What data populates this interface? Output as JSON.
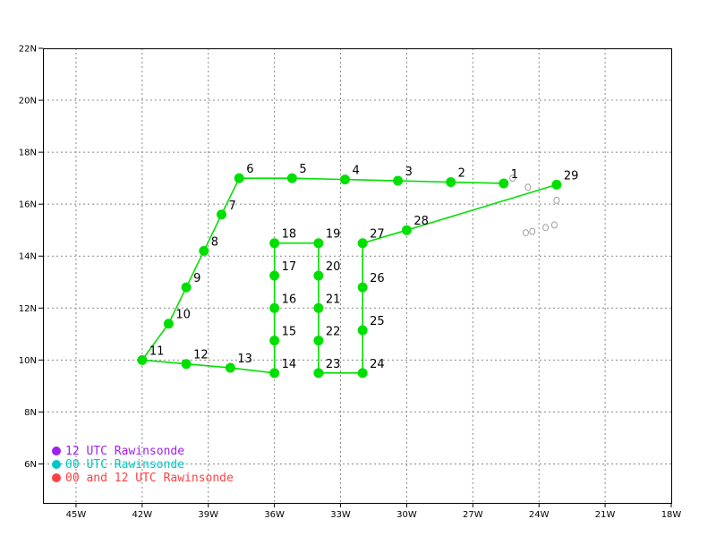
{
  "map": {
    "lon_range": [
      -46.5,
      -18
    ],
    "lat_range": [
      4.5,
      22
    ],
    "grid": "dotted",
    "lon_ticks": [
      {
        "value": -45,
        "label": "45W"
      },
      {
        "value": -42,
        "label": "42W"
      },
      {
        "value": -39,
        "label": "39W"
      },
      {
        "value": -36,
        "label": "36W"
      },
      {
        "value": -33,
        "label": "33W"
      },
      {
        "value": -30,
        "label": "30W"
      },
      {
        "value": -27,
        "label": "27W"
      },
      {
        "value": -24,
        "label": "24W"
      },
      {
        "value": -21,
        "label": "21W"
      },
      {
        "value": -18,
        "label": "18W"
      }
    ],
    "lat_ticks": [
      {
        "value": 6,
        "label": "6N"
      },
      {
        "value": 8,
        "label": "8N"
      },
      {
        "value": 10,
        "label": "10N"
      },
      {
        "value": 12,
        "label": "12N"
      },
      {
        "value": 14,
        "label": "14N"
      },
      {
        "value": 16,
        "label": "16N"
      },
      {
        "value": 18,
        "label": "18N"
      },
      {
        "value": 20,
        "label": "20N"
      },
      {
        "value": 22,
        "label": "22N"
      }
    ],
    "track_color": "#00e000",
    "point_color": "#00e000",
    "coast_color": "#a0a0a0",
    "track_points": [
      {
        "id": "1",
        "lon": -25.6,
        "lat": 16.8
      },
      {
        "id": "2",
        "lon": -28.0,
        "lat": 16.85
      },
      {
        "id": "3",
        "lon": -30.4,
        "lat": 16.9
      },
      {
        "id": "4",
        "lon": -32.8,
        "lat": 16.95
      },
      {
        "id": "5",
        "lon": -35.2,
        "lat": 17.0
      },
      {
        "id": "6",
        "lon": -37.6,
        "lat": 17.0
      },
      {
        "id": "7",
        "lon": -38.4,
        "lat": 15.6
      },
      {
        "id": "8",
        "lon": -39.2,
        "lat": 14.2
      },
      {
        "id": "9",
        "lon": -40.0,
        "lat": 12.8
      },
      {
        "id": "10",
        "lon": -40.8,
        "lat": 11.4
      },
      {
        "id": "11",
        "lon": -42.0,
        "lat": 10.0
      },
      {
        "id": "12",
        "lon": -40.0,
        "lat": 9.85
      },
      {
        "id": "13",
        "lon": -38.0,
        "lat": 9.7
      },
      {
        "id": "14",
        "lon": -36.0,
        "lat": 9.5
      },
      {
        "id": "15",
        "lon": -36.0,
        "lat": 10.75
      },
      {
        "id": "16",
        "lon": -36.0,
        "lat": 12.0
      },
      {
        "id": "17",
        "lon": -36.0,
        "lat": 13.25
      },
      {
        "id": "18",
        "lon": -36.0,
        "lat": 14.5
      },
      {
        "id": "19",
        "lon": -34.0,
        "lat": 14.5
      },
      {
        "id": "20",
        "lon": -34.0,
        "lat": 13.25
      },
      {
        "id": "21",
        "lon": -34.0,
        "lat": 12.0
      },
      {
        "id": "22",
        "lon": -34.0,
        "lat": 10.75
      },
      {
        "id": "23",
        "lon": -34.0,
        "lat": 9.5
      },
      {
        "id": "24",
        "lon": -32.0,
        "lat": 9.5
      },
      {
        "id": "25",
        "lon": -32.0,
        "lat": 11.15
      },
      {
        "id": "26",
        "lon": -32.0,
        "lat": 12.8
      },
      {
        "id": "27",
        "lon": -32.0,
        "lat": 14.5
      },
      {
        "id": "28",
        "lon": -30.0,
        "lat": 15.0
      },
      {
        "id": "29",
        "lon": -23.2,
        "lat": 16.75
      }
    ],
    "islands": [
      {
        "lon": -25.2,
        "lat": 17.0
      },
      {
        "lon": -24.5,
        "lat": 16.65
      },
      {
        "lon": -23.2,
        "lat": 16.15
      },
      {
        "lon": -24.6,
        "lat": 14.9
      },
      {
        "lon": -24.3,
        "lat": 14.95
      },
      {
        "lon": -23.7,
        "lat": 15.1
      },
      {
        "lon": -23.3,
        "lat": 15.2
      }
    ]
  },
  "legend": [
    {
      "label": "12 UTC Rawinsonde",
      "color": "#a020f0"
    },
    {
      "label": "00 UTC Rawinsonde",
      "color": "#00c8c8"
    },
    {
      "label": "00 and 12 UTC Rawinsonde",
      "color": "#ff4040"
    }
  ]
}
